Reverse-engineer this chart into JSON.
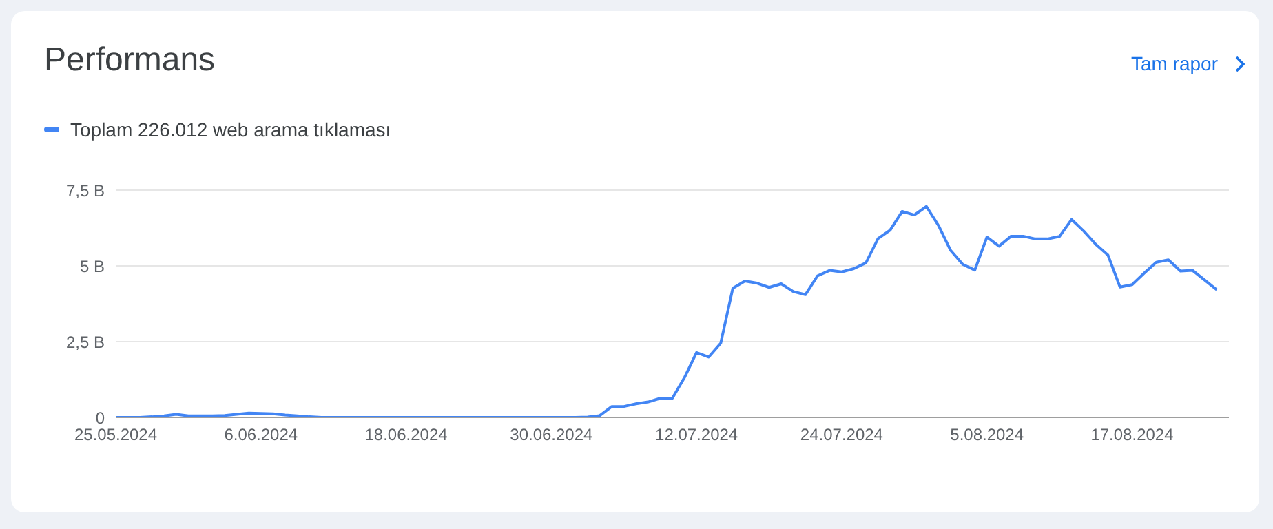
{
  "chart_data": {
    "type": "line",
    "title": "Performans",
    "annotations": [
      "Tam rapor"
    ],
    "x": [
      "2024-05-25",
      "2024-05-26",
      "2024-05-27",
      "2024-05-28",
      "2024-05-29",
      "2024-05-30",
      "2024-05-31",
      "2024-06-01",
      "2024-06-02",
      "2024-06-03",
      "2024-06-04",
      "2024-06-05",
      "2024-06-06",
      "2024-06-07",
      "2024-06-08",
      "2024-06-09",
      "2024-06-10",
      "2024-06-11",
      "2024-06-12",
      "2024-06-13",
      "2024-06-14",
      "2024-06-15",
      "2024-06-16",
      "2024-06-17",
      "2024-06-18",
      "2024-06-19",
      "2024-06-20",
      "2024-06-21",
      "2024-06-22",
      "2024-06-23",
      "2024-06-24",
      "2024-06-25",
      "2024-06-26",
      "2024-06-27",
      "2024-06-28",
      "2024-06-29",
      "2024-06-30",
      "2024-07-01",
      "2024-07-02",
      "2024-07-03",
      "2024-07-04",
      "2024-07-05",
      "2024-07-06",
      "2024-07-07",
      "2024-07-08",
      "2024-07-09",
      "2024-07-10",
      "2024-07-11",
      "2024-07-12",
      "2024-07-13",
      "2024-07-14",
      "2024-07-15",
      "2024-07-16",
      "2024-07-17",
      "2024-07-18",
      "2024-07-19",
      "2024-07-20",
      "2024-07-21",
      "2024-07-22",
      "2024-07-23",
      "2024-07-24",
      "2024-07-25",
      "2024-07-26",
      "2024-07-27",
      "2024-07-28",
      "2024-07-29",
      "2024-07-30",
      "2024-07-31",
      "2024-08-01",
      "2024-08-02",
      "2024-08-03",
      "2024-08-04",
      "2024-08-05",
      "2024-08-06",
      "2024-08-07",
      "2024-08-08",
      "2024-08-09",
      "2024-08-10",
      "2024-08-11",
      "2024-08-12",
      "2024-08-13",
      "2024-08-14",
      "2024-08-15",
      "2024-08-16",
      "2024-08-17",
      "2024-08-18",
      "2024-08-19",
      "2024-08-20",
      "2024-08-21",
      "2024-08-22",
      "2024-08-23",
      "2024-08-24"
    ],
    "series": [
      {
        "name": "Toplam 226.012 web arama tıklaması",
        "color": "#4285f4",
        "values": [
          0,
          0,
          0,
          0.02,
          0.05,
          0.1,
          0.05,
          0.05,
          0.05,
          0.06,
          0.1,
          0.14,
          0.13,
          0.12,
          0.08,
          0.05,
          0.02,
          0,
          0,
          0,
          0,
          0,
          0,
          0,
          0,
          0,
          0,
          0,
          0,
          0,
          0,
          0,
          0,
          0,
          0,
          0,
          0,
          0,
          0,
          0.01,
          0.06,
          0.36,
          0.36,
          0.45,
          0.51,
          0.63,
          0.63,
          1.31,
          2.14,
          1.99,
          2.45,
          4.26,
          4.5,
          4.43,
          4.29,
          4.41,
          4.15,
          4.05,
          4.67,
          4.85,
          4.8,
          4.91,
          5.1,
          5.9,
          6.18,
          6.8,
          6.68,
          6.96,
          6.33,
          5.51,
          5.05,
          4.86,
          5.95,
          5.65,
          5.98,
          5.98,
          5.89,
          5.89,
          5.97,
          6.53,
          6.15,
          5.71,
          5.36,
          4.3,
          4.38,
          4.76,
          5.12,
          5.2,
          4.83,
          4.85,
          4.53,
          4.21
        ]
      }
    ],
    "xlim": [
      "2024-05-25",
      "2024-08-25"
    ],
    "xticks": [
      {
        "value": "2024-05-25",
        "label": "25.05.2024"
      },
      {
        "value": "2024-06-06",
        "label": "6.06.2024"
      },
      {
        "value": "2024-06-18",
        "label": "18.06.2024"
      },
      {
        "value": "2024-06-30",
        "label": "30.06.2024"
      },
      {
        "value": "2024-07-12",
        "label": "12.07.2024"
      },
      {
        "value": "2024-07-24",
        "label": "24.07.2024"
      },
      {
        "value": "2024-08-05",
        "label": "5.08.2024"
      },
      {
        "value": "2024-08-17",
        "label": "17.08.2024"
      }
    ],
    "ylim": [
      0,
      7.5
    ],
    "yticks": [
      0,
      {
        "value": 2.5,
        "label": "2,5 B"
      },
      {
        "value": 5,
        "label": "5 B"
      },
      {
        "value": 7.5,
        "label": "7,5 B"
      }
    ],
    "grid": "y",
    "legend": "top left",
    "marker": "none",
    "line_style": "solid"
  }
}
